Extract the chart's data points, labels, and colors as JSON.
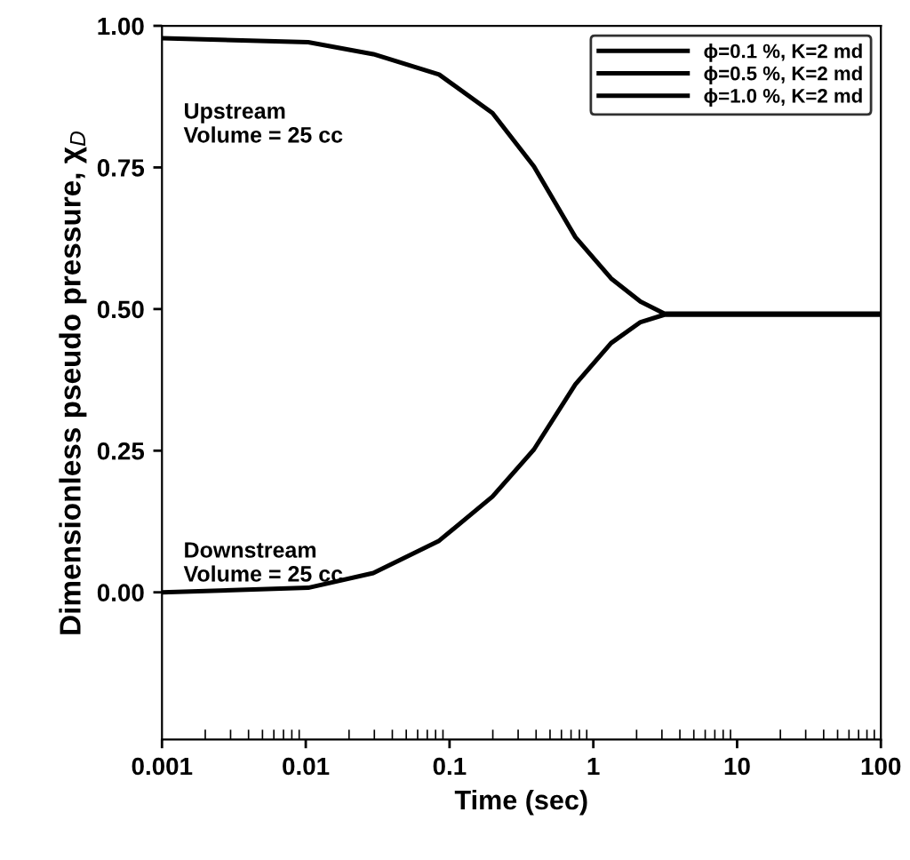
{
  "chart_data": {
    "type": "line",
    "xlabel": "Time (sec)",
    "ylabel": "Dimensionless pseudo pressure, χ$_{D}$",
    "log": "x",
    "xlim": [
      0.001,
      100
    ],
    "xticks": [
      0.001,
      0.01,
      0.1,
      1,
      10,
      100
    ],
    "ylim": [
      -0.26,
      1.0
    ],
    "yticks": [
      {
        "value": 0,
        "label": "0.00"
      },
      {
        "value": 0.25,
        "label": "0.25"
      },
      {
        "value": 0.5,
        "label": "0.50"
      },
      {
        "value": 0.75,
        "label": "0.75"
      },
      {
        "value": 1.0,
        "label": "1.00"
      }
    ],
    "grid": false,
    "legend": "top right",
    "marker": "none",
    "line_style": "solid",
    "annotations": [
      "Upstream\nVolume = 25 cc",
      "Downstream\nVolume = 25 cc"
    ],
    "series": [
      {
        "name": "ϕ=0.1 %, K=2 md",
        "color": "#000000",
        "x": [
          0.001,
          0.0104,
          0.0295,
          0.0846,
          0.199,
          0.386,
          0.75,
          1.33,
          2.13,
          3.12,
          100,
          null,
          0.001,
          0.0104,
          0.0295,
          0.0846,
          0.199,
          0.386,
          0.75,
          1.33,
          2.13,
          3.12,
          100
        ],
        "values": [
          0.978,
          0.971,
          0.95,
          0.914,
          0.846,
          0.752,
          0.627,
          0.554,
          0.513,
          0.492,
          0.492,
          null,
          0.0,
          0.008,
          0.034,
          0.091,
          0.169,
          0.252,
          0.367,
          0.44,
          0.477,
          0.49,
          0.49
        ]
      },
      {
        "name": "ϕ=0.5 %, K=2 md",
        "color": "#000000",
        "x": [
          null,
          null,
          null,
          null,
          null,
          null,
          null,
          null,
          null,
          null,
          null,
          null,
          null,
          null,
          null,
          null,
          null,
          null,
          null,
          null,
          null,
          null,
          null
        ],
        "values": [
          null,
          null,
          null,
          null,
          null,
          null,
          null,
          null,
          null,
          null,
          null,
          null,
          null,
          null,
          null,
          null,
          null,
          null,
          null,
          null,
          null,
          null,
          null
        ]
      },
      {
        "name": "ϕ=1.0 %, K=2 md",
        "color": "#000000",
        "x": [
          null,
          null,
          null,
          null,
          null,
          null,
          null,
          null,
          null,
          null,
          null,
          null,
          null,
          null,
          null,
          null,
          null,
          null,
          null,
          null,
          null,
          null,
          null
        ],
        "values": [
          null,
          null,
          null,
          null,
          null,
          null,
          null,
          null,
          null,
          null,
          null,
          null,
          null,
          null,
          null,
          null,
          null,
          null,
          null,
          null,
          null,
          null,
          null
        ]
      }
    ]
  }
}
